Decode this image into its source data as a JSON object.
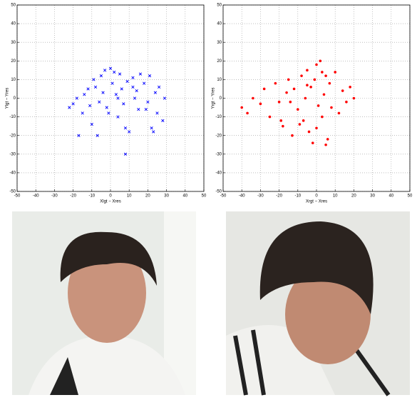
{
  "chart_data": [
    {
      "type": "scatter",
      "marker": "x",
      "color": "#0000ff",
      "xlabel": "Xlgt − Xres",
      "ylabel": "Ylgt − Yres",
      "xlim": [
        -50,
        50
      ],
      "ylim": [
        -50,
        50
      ],
      "grid": true,
      "xticks": [
        -50,
        -40,
        -30,
        -20,
        -10,
        0,
        10,
        20,
        30,
        40,
        50
      ],
      "yticks": [
        -50,
        -40,
        -30,
        -20,
        -10,
        0,
        10,
        20,
        30,
        40,
        50
      ],
      "x": [
        -22,
        -20,
        -18,
        -15,
        -14,
        -12,
        -10,
        -9,
        -8,
        -6,
        -5,
        -4,
        -3,
        -2,
        0,
        1,
        2,
        3,
        4,
        5,
        6,
        7,
        8,
        9,
        10,
        12,
        13,
        14,
        15,
        16,
        18,
        20,
        21,
        22,
        24,
        25,
        26,
        28,
        29,
        -17,
        -11,
        -7,
        8,
        12,
        -1,
        4,
        23,
        19
      ],
      "values": [
        -5,
        -3,
        0,
        -8,
        2,
        5,
        -14,
        10,
        6,
        -2,
        12,
        3,
        15,
        -5,
        16,
        8,
        14,
        2,
        -10,
        13,
        5,
        -3,
        -30,
        9,
        -18,
        11,
        0,
        4,
        -6,
        13,
        8,
        -2,
        12,
        -16,
        3,
        -8,
        6,
        -12,
        0,
        -20,
        -4,
        -20,
        -16,
        6,
        -8,
        0,
        -18,
        -6
      ]
    },
    {
      "type": "scatter",
      "marker": "o",
      "color": "#ff0000",
      "xlabel": "Xrgt − Xres",
      "ylabel": "Yrgt − Yres",
      "xlim": [
        -50,
        50
      ],
      "ylim": [
        -50,
        50
      ],
      "grid": true,
      "xticks": [
        -50,
        -40,
        -30,
        -20,
        -10,
        0,
        10,
        20,
        30,
        40,
        50
      ],
      "yticks": [
        -50,
        -40,
        -30,
        -20,
        -10,
        0,
        10,
        20,
        30,
        40,
        50
      ],
      "x": [
        -40,
        -37,
        -34,
        -30,
        -28,
        -25,
        -22,
        -20,
        -18,
        -16,
        -15,
        -13,
        -12,
        -10,
        -8,
        -7,
        -6,
        -5,
        -4,
        -3,
        -2,
        -1,
        0,
        1,
        2,
        3,
        4,
        5,
        6,
        7,
        8,
        10,
        12,
        14,
        16,
        18,
        20,
        -19,
        -9,
        5,
        -14,
        0,
        -5,
        3
      ],
      "values": [
        -5,
        -8,
        0,
        -3,
        5,
        -10,
        8,
        -2,
        -15,
        3,
        10,
        -20,
        5,
        -6,
        12,
        -12,
        0,
        15,
        -18,
        6,
        -24,
        10,
        18,
        -4,
        20,
        -10,
        2,
        12,
        -22,
        8,
        -5,
        14,
        -8,
        4,
        -2,
        6,
        0,
        -12,
        -14,
        -25,
        -2,
        -16,
        7,
        14
      ]
    }
  ]
}
